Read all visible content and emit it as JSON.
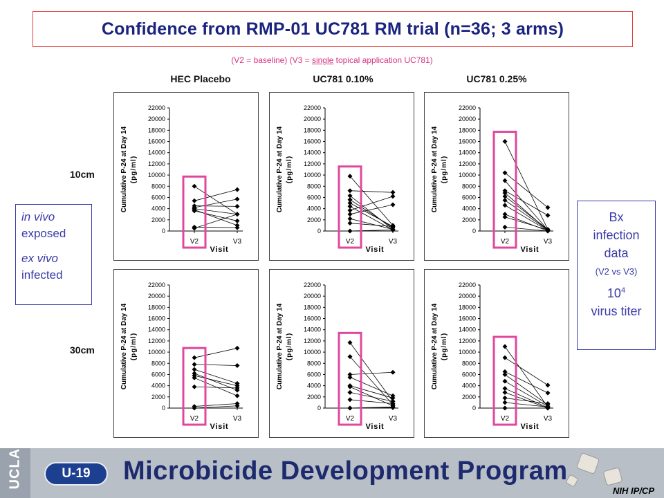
{
  "title": "Confidence from RMP-01 UC781 RM trial (n=36; 3 arms)",
  "subtitle": {
    "part1": "(V2 = baseline) (V3 = ",
    "emph": "single",
    "part2": " topical application UC781)"
  },
  "columns": [
    "HEC Placebo",
    "UC781 0.10%",
    "UC781 0.25%"
  ],
  "rows": [
    "10cm",
    "30cm"
  ],
  "left_box": {
    "line1": "in vivo",
    "line2": "exposed",
    "line3": "ex vivo",
    "line4": "infected"
  },
  "right_box": {
    "line1": "Bx",
    "line2": "infection",
    "line3": "data",
    "line4": "(V2 vs V3)",
    "line5_base": "10",
    "line5_sup": "4",
    "line6": "virus titer"
  },
  "colors": {
    "title": "#1a237e",
    "highlight": "#e0479e",
    "box": "#3a3aa8",
    "subtitle": "#d63384"
  },
  "footer": {
    "ucla": "UCLA",
    "badge": "U-19",
    "program": "Microbicide Development Program",
    "sponsor": "NIH IP/CP"
  },
  "chart_data": [
    {
      "type": "line",
      "panel": "HEC Placebo / 10cm",
      "ylabel": "Cumulative P-24 at Day 14 (pg/ml)",
      "xlabel": "Visit",
      "categories": [
        "V2",
        "V3"
      ],
      "ylim": [
        0,
        22000
      ],
      "yticks": [
        0,
        2000,
        4000,
        6000,
        8000,
        10000,
        12000,
        14000,
        16000,
        18000,
        20000,
        22000
      ],
      "series": [
        {
          "values": [
            8000,
            3000
          ]
        },
        {
          "values": [
            5400,
            7400
          ]
        },
        {
          "values": [
            4500,
            4400
          ]
        },
        {
          "values": [
            4200,
            5700
          ]
        },
        {
          "values": [
            4000,
            3000
          ]
        },
        {
          "values": [
            3800,
            1000
          ]
        },
        {
          "values": [
            3600,
            1800
          ]
        },
        {
          "values": [
            700,
            600
          ]
        },
        {
          "values": [
            500,
            3000
          ]
        }
      ]
    },
    {
      "type": "line",
      "panel": "UC781 0.10% / 10cm",
      "ylabel": "Cumulative P-24 at Day 14 (pg/ml)",
      "xlabel": "Visit",
      "categories": [
        "V2",
        "V3"
      ],
      "ylim": [
        0,
        22000
      ],
      "yticks": [
        0,
        2000,
        4000,
        6000,
        8000,
        10000,
        12000,
        14000,
        16000,
        18000,
        20000,
        22000
      ],
      "series": [
        {
          "values": [
            9800,
            1000
          ]
        },
        {
          "values": [
            7200,
            6900
          ]
        },
        {
          "values": [
            6300,
            300
          ]
        },
        {
          "values": [
            5600,
            600
          ]
        },
        {
          "values": [
            5000,
            800
          ]
        },
        {
          "values": [
            4400,
            200
          ]
        },
        {
          "values": [
            3700,
            6200
          ]
        },
        {
          "values": [
            3000,
            4700
          ]
        },
        {
          "values": [
            2200,
            300
          ]
        },
        {
          "values": [
            1400,
            800
          ]
        },
        {
          "values": [
            0,
            200
          ]
        }
      ]
    },
    {
      "type": "line",
      "panel": "UC781 0.25% / 10cm",
      "ylabel": "Cumulative P-24 at Day 14 (pg/ml)",
      "xlabel": "Visit",
      "categories": [
        "V2",
        "V3"
      ],
      "ylim": [
        0,
        22000
      ],
      "yticks": [
        0,
        2000,
        4000,
        6000,
        8000,
        10000,
        12000,
        14000,
        16000,
        18000,
        20000,
        22000
      ],
      "series": [
        {
          "values": [
            16000,
            300
          ]
        },
        {
          "values": [
            10400,
            4200
          ]
        },
        {
          "values": [
            9000,
            200
          ]
        },
        {
          "values": [
            7200,
            2800
          ]
        },
        {
          "values": [
            6800,
            100
          ]
        },
        {
          "values": [
            6200,
            300
          ]
        },
        {
          "values": [
            5500,
            200
          ]
        },
        {
          "values": [
            4600,
            100
          ]
        },
        {
          "values": [
            3000,
            0
          ]
        },
        {
          "values": [
            2500,
            200
          ]
        },
        {
          "values": [
            700,
            0
          ]
        }
      ]
    },
    {
      "type": "line",
      "panel": "HEC Placebo / 30cm",
      "ylabel": "Cumulative P-24 at Day 14 (pg/ml)",
      "xlabel": "Visit",
      "categories": [
        "V2",
        "V3"
      ],
      "ylim": [
        0,
        22000
      ],
      "yticks": [
        0,
        2000,
        4000,
        6000,
        8000,
        10000,
        12000,
        14000,
        16000,
        18000,
        20000,
        22000
      ],
      "series": [
        {
          "values": [
            9000,
            10700
          ]
        },
        {
          "values": [
            7800,
            7600
          ]
        },
        {
          "values": [
            6900,
            4400
          ]
        },
        {
          "values": [
            6200,
            3200
          ]
        },
        {
          "values": [
            5800,
            4000
          ]
        },
        {
          "values": [
            5400,
            2200
          ]
        },
        {
          "values": [
            3800,
            3600
          ]
        },
        {
          "values": [
            300,
            800
          ]
        },
        {
          "values": [
            0,
            400
          ]
        }
      ]
    },
    {
      "type": "line",
      "panel": "UC781 0.10% / 30cm",
      "ylabel": "Cumulative P-24 at Day 14 (pg/ml)",
      "xlabel": "Visit",
      "categories": [
        "V2",
        "V3"
      ],
      "ylim": [
        0,
        22000
      ],
      "yticks": [
        0,
        2000,
        4000,
        6000,
        8000,
        10000,
        12000,
        14000,
        16000,
        18000,
        20000,
        22000
      ],
      "series": [
        {
          "values": [
            11700,
            1200
          ]
        },
        {
          "values": [
            9200,
            600
          ]
        },
        {
          "values": [
            6000,
            6400
          ]
        },
        {
          "values": [
            5500,
            2200
          ]
        },
        {
          "values": [
            4000,
            1800
          ]
        },
        {
          "values": [
            3800,
            400
          ]
        },
        {
          "values": [
            2800,
            1200
          ]
        },
        {
          "values": [
            1500,
            800
          ]
        },
        {
          "values": [
            0,
            200
          ]
        },
        {
          "values": [
            0,
            100
          ]
        }
      ]
    },
    {
      "type": "line",
      "panel": "UC781 0.25% / 30cm",
      "ylabel": "Cumulative P-24 at Day 14 (pg/ml)",
      "xlabel": "Visit",
      "categories": [
        "V2",
        "V3"
      ],
      "ylim": [
        0,
        22000
      ],
      "yticks": [
        0,
        2000,
        4000,
        6000,
        8000,
        10000,
        12000,
        14000,
        16000,
        18000,
        20000,
        22000
      ],
      "series": [
        {
          "values": [
            11000,
            200
          ]
        },
        {
          "values": [
            9000,
            4100
          ]
        },
        {
          "values": [
            6500,
            2700
          ]
        },
        {
          "values": [
            6000,
            600
          ]
        },
        {
          "values": [
            4800,
            300
          ]
        },
        {
          "values": [
            3500,
            100
          ]
        },
        {
          "values": [
            2800,
            0
          ]
        },
        {
          "values": [
            1800,
            800
          ]
        },
        {
          "values": [
            1000,
            200
          ]
        },
        {
          "values": [
            0,
            0
          ]
        }
      ]
    }
  ]
}
